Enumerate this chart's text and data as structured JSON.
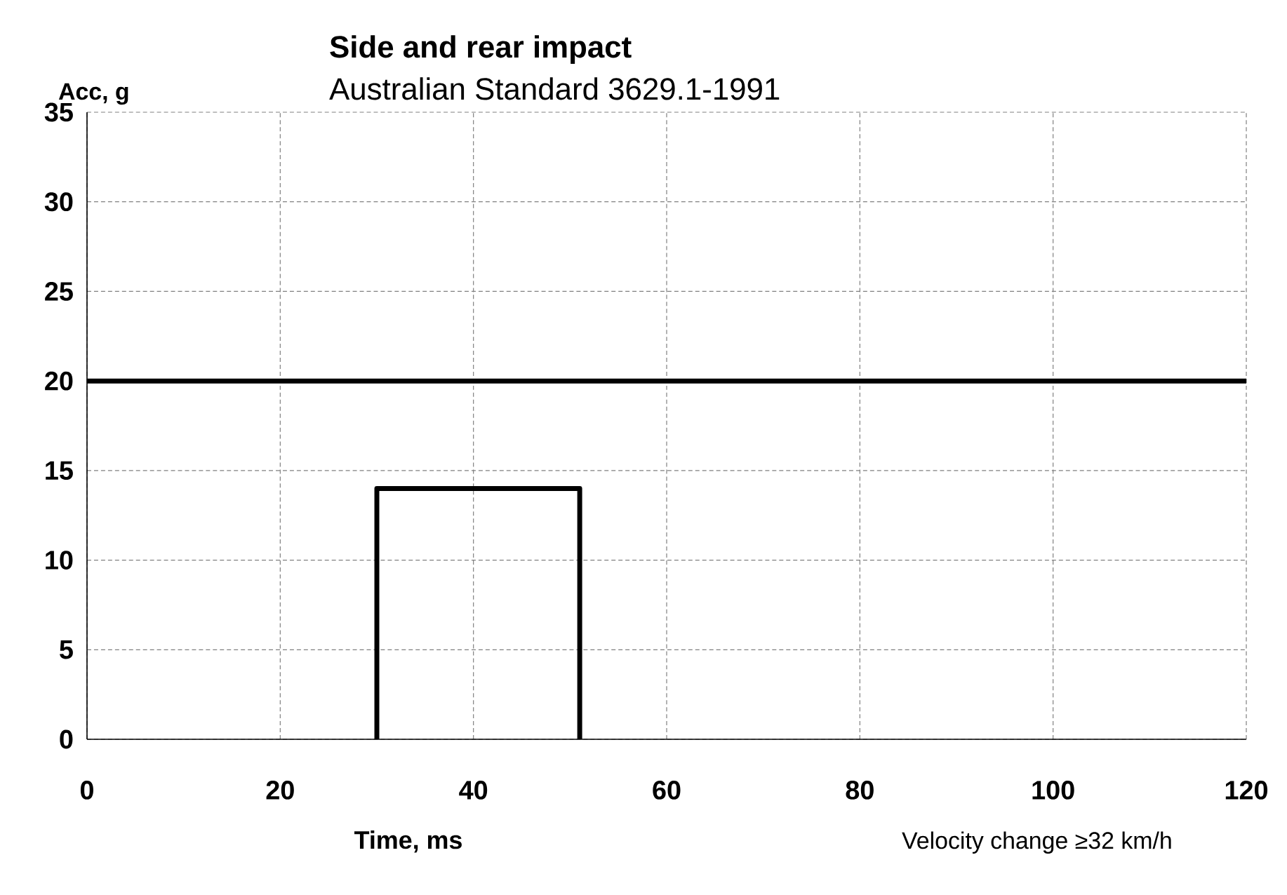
{
  "chart_data": {
    "type": "line",
    "title": "Side and rear impact",
    "subtitle": "Australian Standard 3629.1-1991",
    "ylabel": "Acc, g",
    "xlabel": "Time, ms",
    "annotations": [
      "Velocity change ≥32 km/h"
    ],
    "series": [
      {
        "color": "#000000",
        "x": [
          0,
          120
        ],
        "values": [
          20,
          20
        ]
      },
      {
        "color": "#000000",
        "x": [
          30,
          30,
          51,
          51
        ],
        "values": [
          0,
          14,
          14,
          0
        ]
      }
    ],
    "xlim": [
      0,
      120
    ],
    "xticks": [
      0,
      20,
      40,
      60,
      80,
      100,
      120
    ],
    "ylim": [
      0,
      35
    ],
    "yticks": [
      0,
      5,
      10,
      15,
      20,
      25,
      30,
      35
    ],
    "grid": true,
    "marker": "none",
    "line_style": "solid"
  }
}
